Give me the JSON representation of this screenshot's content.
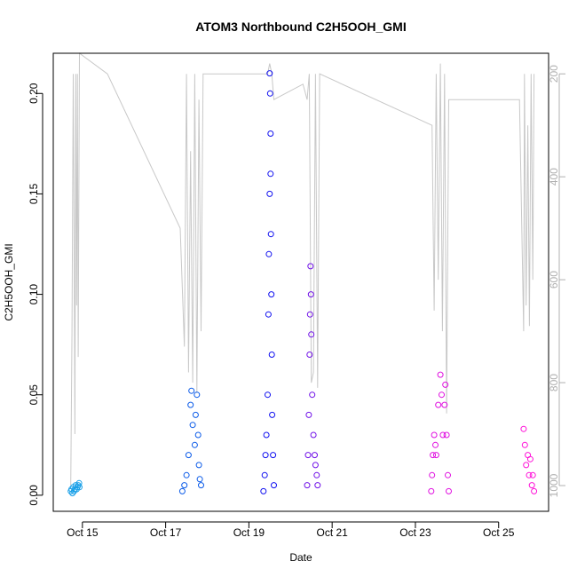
{
  "chart_data": {
    "type": "scatter",
    "title": "ATOM3 Northbound C2H5OOH_GMI",
    "xlabel": "Date",
    "ylabel": "C2H5OOH_GMI",
    "x_ticks": [
      "Oct 15",
      "Oct 17",
      "Oct 19",
      "Oct 21",
      "Oct 23",
      "Oct 25"
    ],
    "x_tick_days": [
      15,
      17,
      19,
      21,
      23,
      25
    ],
    "xlim_days": [
      14.3,
      26.2
    ],
    "ylim": [
      -0.008,
      0.22
    ],
    "y_ticks": [
      0.0,
      0.05,
      0.1,
      0.15,
      0.2
    ],
    "y_tick_labels": [
      "0.00",
      "0.05",
      "0.10",
      "0.15",
      "0.20"
    ],
    "y2_label": "",
    "y2lim": [
      1050,
      160
    ],
    "y2_ticks": [
      200,
      400,
      600,
      800,
      1000
    ],
    "y2_tick_labels": [
      "200",
      "400",
      "600",
      "800",
      "1000"
    ],
    "marker": "open-circle",
    "grid": false,
    "legend": "none",
    "colors": {
      "pressure_line": "#c8c8c8",
      "axis": "#000000",
      "right_axis": "#b0b0b0"
    },
    "series": [
      {
        "color": "#1aa0e8",
        "points": [
          [
            14.72,
            0.002
          ],
          [
            14.74,
            0.003
          ],
          [
            14.76,
            0.001
          ],
          [
            14.78,
            0.004
          ],
          [
            14.8,
            0.002
          ],
          [
            14.82,
            0.003
          ],
          [
            14.84,
            0.005
          ],
          [
            14.86,
            0.003
          ],
          [
            14.88,
            0.004
          ],
          [
            14.9,
            0.005
          ],
          [
            14.92,
            0.006
          ],
          [
            14.93,
            0.004
          ]
        ]
      },
      {
        "color": "#0a5ae8",
        "points": [
          [
            17.4,
            0.002
          ],
          [
            17.45,
            0.005
          ],
          [
            17.5,
            0.01
          ],
          [
            17.55,
            0.02
          ],
          [
            17.6,
            0.045
          ],
          [
            17.62,
            0.052
          ],
          [
            17.65,
            0.035
          ],
          [
            17.7,
            0.025
          ],
          [
            17.72,
            0.04
          ],
          [
            17.75,
            0.05
          ],
          [
            17.78,
            0.03
          ],
          [
            17.8,
            0.015
          ],
          [
            17.82,
            0.008
          ],
          [
            17.85,
            0.005
          ]
        ]
      },
      {
        "color": "#1010f0",
        "points": [
          [
            19.35,
            0.002
          ],
          [
            19.38,
            0.01
          ],
          [
            19.4,
            0.02
          ],
          [
            19.42,
            0.03
          ],
          [
            19.45,
            0.05
          ],
          [
            19.47,
            0.09
          ],
          [
            19.48,
            0.12
          ],
          [
            19.5,
            0.15
          ],
          [
            19.5,
            0.21
          ],
          [
            19.51,
            0.2
          ],
          [
            19.52,
            0.18
          ],
          [
            19.52,
            0.16
          ],
          [
            19.53,
            0.13
          ],
          [
            19.54,
            0.1
          ],
          [
            19.55,
            0.07
          ],
          [
            19.56,
            0.04
          ],
          [
            19.58,
            0.02
          ],
          [
            19.6,
            0.005
          ]
        ]
      },
      {
        "color": "#7010e8",
        "points": [
          [
            20.4,
            0.005
          ],
          [
            20.42,
            0.02
          ],
          [
            20.44,
            0.04
          ],
          [
            20.46,
            0.07
          ],
          [
            20.47,
            0.09
          ],
          [
            20.48,
            0.114
          ],
          [
            20.49,
            0.1
          ],
          [
            20.5,
            0.08
          ],
          [
            20.52,
            0.05
          ],
          [
            20.55,
            0.03
          ],
          [
            20.58,
            0.02
          ],
          [
            20.6,
            0.015
          ],
          [
            20.63,
            0.01
          ],
          [
            20.65,
            0.005
          ]
        ]
      },
      {
        "color": "#e010e0",
        "points": [
          [
            23.38,
            0.002
          ],
          [
            23.4,
            0.01
          ],
          [
            23.42,
            0.02
          ],
          [
            23.45,
            0.03
          ],
          [
            23.48,
            0.025
          ],
          [
            23.5,
            0.02
          ],
          [
            23.55,
            0.045
          ],
          [
            23.6,
            0.06
          ],
          [
            23.63,
            0.05
          ],
          [
            23.66,
            0.03
          ],
          [
            23.7,
            0.045
          ],
          [
            23.72,
            0.055
          ],
          [
            23.75,
            0.03
          ],
          [
            23.78,
            0.01
          ],
          [
            23.8,
            0.002
          ]
        ]
      },
      {
        "color": "#ff10d8",
        "points": [
          [
            25.6,
            0.033
          ],
          [
            25.63,
            0.025
          ],
          [
            25.66,
            0.015
          ],
          [
            25.7,
            0.02
          ],
          [
            25.73,
            0.01
          ],
          [
            25.76,
            0.018
          ],
          [
            25.8,
            0.005
          ],
          [
            25.82,
            0.01
          ],
          [
            25.85,
            0.002
          ]
        ]
      }
    ],
    "pressure_line": {
      "color": "#c8c8c8",
      "points": [
        [
          14.72,
          1000
        ],
        [
          14.75,
          700
        ],
        [
          14.78,
          200
        ],
        [
          14.8,
          500
        ],
        [
          14.82,
          900
        ],
        [
          14.84,
          200
        ],
        [
          14.86,
          650
        ],
        [
          14.88,
          200
        ],
        [
          14.9,
          750
        ],
        [
          14.93,
          150
        ],
        [
          15.6,
          200
        ],
        [
          17.35,
          500
        ],
        [
          17.45,
          730
        ],
        [
          17.5,
          200
        ],
        [
          17.55,
          780
        ],
        [
          17.6,
          350
        ],
        [
          17.65,
          800
        ],
        [
          17.7,
          200
        ],
        [
          17.75,
          820
        ],
        [
          17.8,
          250
        ],
        [
          17.85,
          700
        ],
        [
          17.9,
          200
        ],
        [
          19.4,
          200
        ],
        [
          19.45,
          200
        ],
        [
          19.5,
          180
        ],
        [
          19.55,
          200
        ],
        [
          19.6,
          250
        ],
        [
          20.3,
          220
        ],
        [
          20.4,
          250
        ],
        [
          20.45,
          200
        ],
        [
          20.5,
          800
        ],
        [
          20.55,
          780
        ],
        [
          20.6,
          200
        ],
        [
          20.65,
          810
        ],
        [
          20.7,
          200
        ],
        [
          23.4,
          300
        ],
        [
          23.45,
          660
        ],
        [
          23.5,
          200
        ],
        [
          23.55,
          600
        ],
        [
          23.6,
          180
        ],
        [
          23.65,
          700
        ],
        [
          23.7,
          200
        ],
        [
          23.75,
          860
        ],
        [
          23.8,
          250
        ],
        [
          25.5,
          250
        ],
        [
          25.6,
          700
        ],
        [
          25.62,
          200
        ],
        [
          25.66,
          650
        ],
        [
          25.7,
          300
        ],
        [
          25.74,
          690
        ],
        [
          25.78,
          200
        ],
        [
          25.82,
          600
        ],
        [
          25.85,
          200
        ]
      ]
    }
  }
}
